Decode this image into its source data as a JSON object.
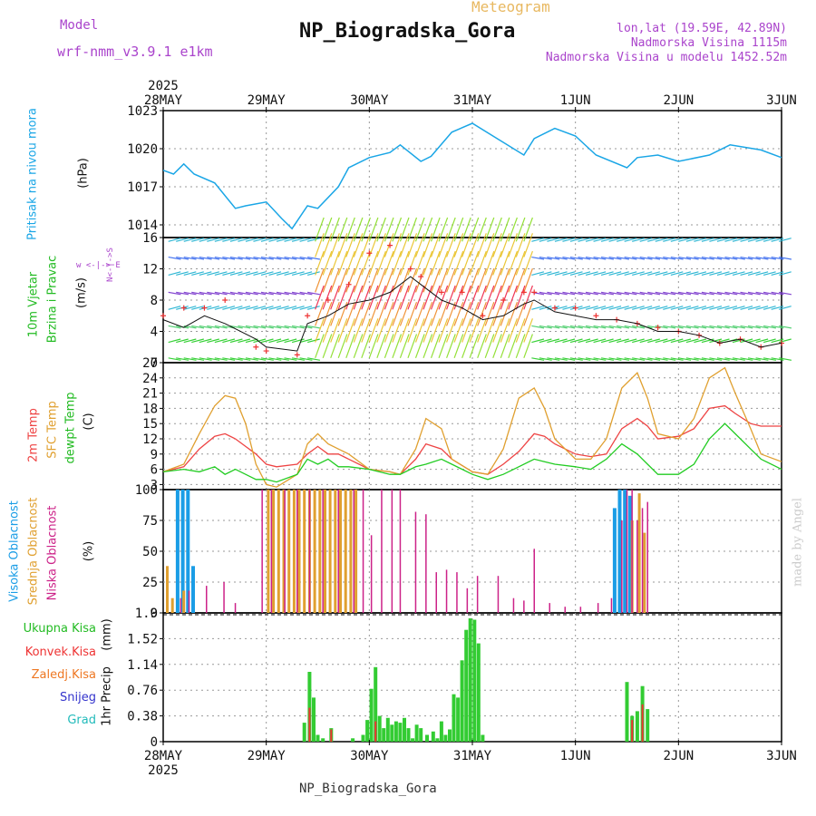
{
  "header": {
    "meteogram_label": "Meteogram",
    "model_label": "Model",
    "model_name": "wrf-nmm_v3.9.1 e1km",
    "station_title": "NP_Biogradska_Gora",
    "coords": "lon,lat (19.59E, 42.89N)",
    "elevation": "Nadmorska Visina 1115m",
    "model_elevation": "Nadmorska Visina u modelu 1452.52m",
    "footer_station": "NP_Biogradska_Gora",
    "credit": "made by Angel"
  },
  "colors": {
    "pressure": "#1aa6e6",
    "wind_label_green": "#22bb22",
    "temp_2m": "#ee4444",
    "temp_sfc": "#e0a030",
    "dewpoint": "#22cc22",
    "cloud_high": "#1a9de6",
    "cloud_mid": "#e0a030",
    "cloud_low": "#cc2288",
    "precip_total": "#33cc33",
    "precip_conv": "#ee3333",
    "purple_text": "#aa44cc",
    "credit": "#cccccc"
  },
  "time_axis": {
    "year": "2025",
    "ticks": [
      "28MAY",
      "29MAY",
      "30MAY",
      "31MAY",
      "1JUN",
      "2JUN",
      "3JUN"
    ]
  },
  "chart_data": [
    {
      "type": "line",
      "panel": "pressure",
      "ylabel": "Pritisak na nivou mora",
      "unit": "(hPa)",
      "ylim": [
        1013,
        1023
      ],
      "yticks": [
        "1014",
        "1017",
        "1020",
        "1023"
      ],
      "x_unit": "days since 28MAY 00",
      "x": [
        0,
        0.1,
        0.2,
        0.3,
        0.5,
        0.7,
        0.8,
        1.0,
        1.15,
        1.25,
        1.4,
        1.5,
        1.7,
        1.8,
        2.0,
        2.2,
        2.3,
        2.5,
        2.6,
        2.8,
        3.0,
        3.2,
        3.5,
        3.6,
        3.8,
        4.0,
        4.2,
        4.5,
        4.6,
        4.8,
        5.0,
        5.3,
        5.5,
        5.8,
        6.0
      ],
      "series": [
        {
          "values": [
            1018.3,
            1018.0,
            1018.8,
            1018.0,
            1017.3,
            1015.3,
            1015.5,
            1015.8,
            1014.5,
            1013.7,
            1015.5,
            1015.3,
            1017.0,
            1018.5,
            1019.3,
            1019.7,
            1020.3,
            1019.0,
            1019.4,
            1021.3,
            1022.0,
            1021.0,
            1019.5,
            1020.8,
            1021.6,
            1021.0,
            1019.5,
            1018.5,
            1019.3,
            1019.5,
            1019.0,
            1019.5,
            1020.3,
            1019.9,
            1019.3
          ]
        }
      ]
    },
    {
      "type": "line",
      "panel": "wind",
      "ylabel": "10m Vjetar Brzina i Pravac",
      "unit": "(m/s)",
      "compass": "w <-|-> E  N<-|->S",
      "ylim": [
        0,
        16
      ],
      "yticks": [
        "0",
        "4",
        "8",
        "12",
        "16"
      ],
      "x": [
        0,
        0.2,
        0.4,
        0.6,
        0.9,
        1.0,
        1.3,
        1.4,
        1.6,
        1.8,
        2.0,
        2.2,
        2.4,
        2.5,
        2.7,
        2.9,
        3.1,
        3.3,
        3.5,
        3.6,
        3.8,
        4.0,
        4.2,
        4.4,
        4.6,
        4.8,
        5.0,
        5.2,
        5.4,
        5.6,
        5.8,
        6.0
      ],
      "series": [
        {
          "name": "speed",
          "values": [
            5.5,
            4.5,
            6,
            5,
            3,
            2,
            1.5,
            5,
            6,
            7.5,
            8,
            9,
            11,
            10,
            8,
            7,
            5.5,
            6,
            7.5,
            8,
            6.5,
            6,
            5.5,
            5.5,
            5,
            4,
            4,
            3.5,
            2.5,
            3,
            2,
            2.5
          ]
        },
        {
          "name": "gust",
          "values": [
            6,
            7,
            7,
            8,
            2,
            1.5,
            1,
            6,
            8,
            10,
            14,
            15,
            12,
            11,
            9,
            9,
            6,
            8,
            9,
            9,
            7,
            7,
            6,
            5.5,
            5,
            4.5,
            4,
            3.5,
            2.5,
            3,
            2,
            2.5
          ]
        }
      ]
    },
    {
      "type": "line",
      "panel": "temperature",
      "ylabel": "2m Temp / SFC Temp / dewpt Temp",
      "unit": "(C)",
      "ylim": [
        2,
        27
      ],
      "yticks": [
        "3",
        "6",
        "9",
        "12",
        "15",
        "18",
        "21",
        "24",
        "27"
      ],
      "x": [
        0,
        0.2,
        0.35,
        0.5,
        0.6,
        0.7,
        0.8,
        0.9,
        1.0,
        1.1,
        1.3,
        1.4,
        1.5,
        1.6,
        1.7,
        1.8,
        2.0,
        2.2,
        2.3,
        2.45,
        2.55,
        2.7,
        2.8,
        3.0,
        3.15,
        3.3,
        3.45,
        3.6,
        3.7,
        3.8,
        4.0,
        4.15,
        4.3,
        4.45,
        4.6,
        4.7,
        4.8,
        5.0,
        5.15,
        5.3,
        5.45,
        5.55,
        5.7,
        5.8,
        6.0
      ],
      "series": [
        {
          "name": "2m Temp",
          "values": [
            5.5,
            6.5,
            10,
            12.5,
            13,
            12,
            10.5,
            9,
            7,
            6.5,
            7,
            9,
            10.5,
            9,
            9,
            8,
            6,
            5.5,
            5,
            8,
            11,
            10,
            8,
            5.5,
            5,
            7,
            9.5,
            13,
            12.5,
            11,
            9,
            8.5,
            9,
            14,
            16,
            14.5,
            12,
            12.5,
            14,
            18,
            18.5,
            17,
            15,
            14.5,
            14.5
          ]
        },
        {
          "name": "SFC Temp",
          "values": [
            5.5,
            7,
            13,
            18.5,
            20.5,
            20,
            15,
            7,
            3,
            2.5,
            5,
            11,
            13,
            11,
            10,
            9,
            6,
            5.5,
            5,
            10,
            16,
            14,
            8,
            5.5,
            5,
            10,
            20,
            22,
            18,
            12,
            8,
            8,
            12,
            22,
            25,
            20,
            13,
            12,
            16,
            24,
            26,
            21,
            14,
            9,
            7.5
          ]
        },
        {
          "name": "dewpt Temp",
          "values": [
            5.5,
            6,
            5.5,
            6.5,
            5,
            6,
            5,
            4,
            4,
            3.5,
            5,
            8,
            7,
            8,
            6.5,
            6.5,
            6,
            5,
            5,
            6.5,
            7,
            8,
            7,
            5,
            4,
            5,
            6.5,
            8,
            7.5,
            7,
            6.5,
            6,
            8,
            11,
            9,
            7,
            5,
            5,
            7,
            12,
            15,
            13,
            10,
            8,
            6
          ]
        }
      ]
    },
    {
      "type": "bar",
      "panel": "clouds",
      "ylabel": "Visoka Oblacnost / Srednja Oblacnost / Niska Oblacnost",
      "unit": "(%)",
      "ylim": [
        0,
        100
      ],
      "yticks": [
        "0",
        "25",
        "50",
        "75",
        "100"
      ],
      "series": [
        {
          "name": "Visoka Oblacnost",
          "x": [
            0.14,
            0.19,
            0.24,
            0.29,
            4.38,
            4.43,
            4.48,
            4.53
          ],
          "values": [
            100,
            100,
            100,
            38,
            85,
            100,
            100,
            95
          ]
        },
        {
          "name": "Srednja Oblacnost",
          "x": [
            0.04,
            0.09,
            0.2,
            1.02,
            1.07,
            1.12,
            1.17,
            1.22,
            1.27,
            1.32,
            1.37,
            1.42,
            1.47,
            1.52,
            1.57,
            1.62,
            1.67,
            1.72,
            1.77,
            1.82,
            1.87,
            4.55,
            4.62,
            4.67
          ],
          "values": [
            38,
            12,
            18,
            100,
            100,
            100,
            100,
            100,
            100,
            100,
            100,
            100,
            100,
            100,
            100,
            100,
            100,
            100,
            100,
            100,
            100,
            75,
            97,
            65
          ]
        },
        {
          "name": "Niska Oblacnost",
          "x": [
            0.17,
            0.25,
            0.42,
            0.59,
            0.7,
            0.96,
            1.05,
            1.18,
            1.3,
            1.42,
            1.55,
            1.7,
            1.85,
            1.94,
            2.02,
            2.12,
            2.22,
            2.3,
            2.45,
            2.55,
            2.65,
            2.75,
            2.85,
            2.95,
            3.05,
            3.25,
            3.4,
            3.5,
            3.6,
            3.75,
            3.9,
            4.05,
            4.22,
            4.35,
            4.45,
            4.5,
            4.55,
            4.6,
            4.65,
            4.7
          ],
          "values": [
            12,
            18,
            22,
            25,
            8,
            100,
            100,
            100,
            100,
            100,
            100,
            100,
            100,
            100,
            63,
            100,
            100,
            100,
            82,
            80,
            33,
            35,
            33,
            20,
            30,
            30,
            12,
            10,
            52,
            8,
            5,
            5,
            8,
            12,
            75,
            100,
            100,
            75,
            85,
            90
          ]
        }
      ]
    },
    {
      "type": "bar",
      "panel": "precip",
      "ylabel": "1hr Precip",
      "unit": "(mm)",
      "ylim": [
        0,
        1.9
      ],
      "yticks": [
        "0",
        "0.38",
        "0.76",
        "1.14",
        "1.52",
        "1.9"
      ],
      "legend": [
        "Ukupna Kisa",
        "Konvek.Kisa",
        "Zaledj.Kisa",
        "Snijeg",
        "Grad"
      ],
      "series": [
        {
          "name": "Ukupna Kisa",
          "x": [
            1.37,
            1.42,
            1.46,
            1.5,
            1.55,
            1.63,
            1.84,
            1.94,
            1.98,
            2.02,
            2.06,
            2.1,
            2.14,
            2.18,
            2.22,
            2.26,
            2.3,
            2.34,
            2.38,
            2.42,
            2.46,
            2.5,
            2.56,
            2.62,
            2.66,
            2.7,
            2.74,
            2.78,
            2.82,
            2.86,
            2.9,
            2.94,
            2.98,
            3.02,
            3.06,
            3.1,
            4.5,
            4.55,
            4.6,
            4.65,
            4.7
          ],
          "values": [
            0.28,
            1.03,
            0.65,
            0.1,
            0.05,
            0.2,
            0.05,
            0.1,
            0.32,
            0.78,
            1.1,
            0.38,
            0.2,
            0.35,
            0.25,
            0.3,
            0.28,
            0.35,
            0.2,
            0.05,
            0.25,
            0.2,
            0.1,
            0.15,
            0.05,
            0.3,
            0.1,
            0.18,
            0.7,
            0.65,
            1.2,
            1.65,
            1.82,
            1.8,
            1.45,
            0.1,
            0.88,
            0.38,
            0.45,
            0.82,
            0.48
          ]
        },
        {
          "name": "Konvek.Kisa",
          "x": [
            1.42,
            1.63,
            2.06,
            4.55,
            4.65
          ],
          "values": [
            0.5,
            0.18,
            0.3,
            0.32,
            0.55
          ]
        }
      ]
    }
  ],
  "legends": {
    "pressure": {
      "a": "Pritisak na nivou mora",
      "unit": "(hPa)"
    },
    "wind": {
      "a": "10m Vjetar",
      "b": "Brzina i Pravac",
      "unit": "(m/s)",
      "compass_ew": "w <-|-> E",
      "compass_ns": "N<-|->S"
    },
    "temp": {
      "a": "2m Temp",
      "b": "SFC Temp",
      "c": "dewpt Temp",
      "unit": "(C)"
    },
    "cloud": {
      "a": "Visoka Oblacnost",
      "b": "Srednja Oblacnost",
      "c": "Niska Oblacnost",
      "unit": "(%)"
    },
    "precip": {
      "a": "Ukupna Kisa",
      "b": "Konvek.Kisa",
      "c": "Zaledj.Kisa",
      "d": "Snijeg",
      "e": "Grad",
      "axis": "1hr Precip",
      "unit": "(mm)"
    }
  }
}
